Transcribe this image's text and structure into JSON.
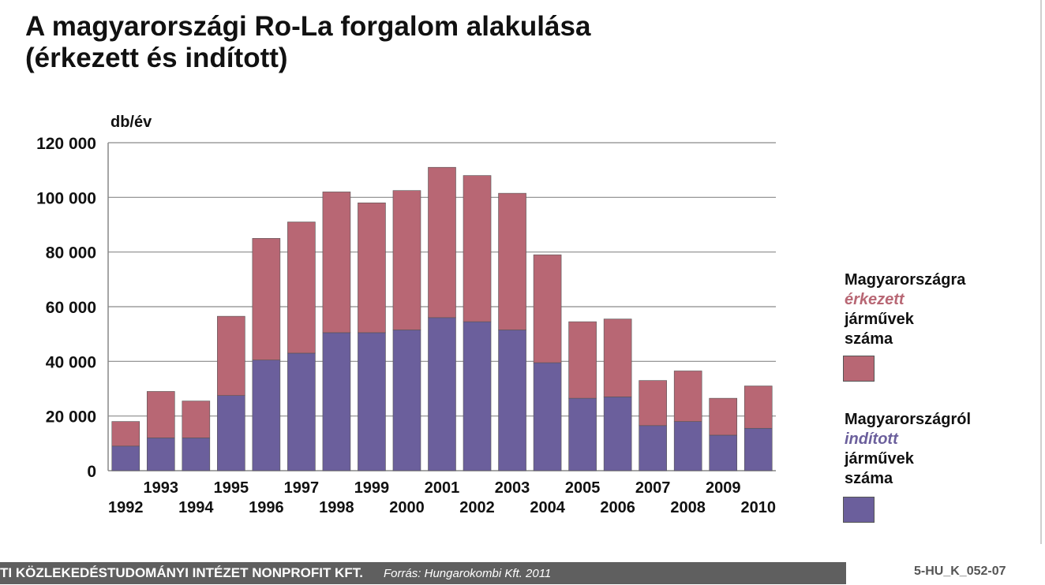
{
  "title_line1": "A magyarországi Ro-La forgalom alakulása",
  "title_line2": "(érkezett és indított)",
  "colors": {
    "received": "#b86774",
    "departed": "#6b5f9c",
    "grid": "#8a8a8a",
    "axis": "#888888"
  },
  "chart_data": {
    "type": "bar",
    "stacked": true,
    "ylabel": "db/év",
    "ylim": [
      0,
      120000
    ],
    "yticks": [
      0,
      20000,
      40000,
      60000,
      80000,
      100000,
      120000
    ],
    "ytick_labels": [
      "0",
      "20 000",
      "40 000",
      "60 000",
      "80 000",
      "100 000",
      "120 000"
    ],
    "grid": true,
    "legend_position": "right",
    "categories": [
      "1992",
      "1993",
      "1994",
      "1995",
      "1996",
      "1997",
      "1998",
      "1999",
      "2000",
      "2001",
      "2002",
      "2003",
      "2004",
      "2005",
      "2006",
      "2007",
      "2008",
      "2009",
      "2010"
    ],
    "series": [
      {
        "key": "departed",
        "values": [
          9000,
          12000,
          12000,
          27500,
          40500,
          43000,
          50500,
          50500,
          51500,
          56000,
          54500,
          51500,
          39500,
          26500,
          27000,
          16500,
          18000,
          13000,
          15500
        ]
      },
      {
        "key": "received",
        "values": [
          9000,
          17000,
          13500,
          29000,
          44500,
          48000,
          51500,
          47500,
          51000,
          55000,
          53500,
          50000,
          39500,
          28000,
          28500,
          16500,
          18500,
          13500,
          15500
        ]
      }
    ]
  },
  "legend": {
    "received": {
      "line1": "Magyarországra",
      "line2": "érkezett",
      "line3": "járművek",
      "line4": "száma"
    },
    "departed": {
      "line1": "Magyarországról",
      "line2": "indított",
      "line3": "járművek",
      "line4": "száma"
    }
  },
  "footer": {
    "org": "TI KÖZLEKEDÉSTUDOMÁNYI INTÉZET NONPROFIT KFT.",
    "source": "Forrás: Hungarokombi Kft. 2011",
    "code": "5-HU_K_052-07"
  }
}
